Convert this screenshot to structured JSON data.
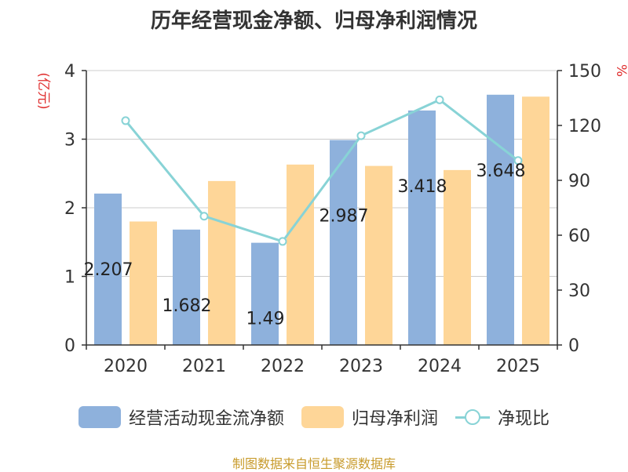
{
  "chart_data": {
    "type": "bar",
    "title": "历年经营现金净额、归母净利润情况",
    "categories": [
      "2020",
      "2021",
      "2022",
      "2023",
      "2024",
      "2025"
    ],
    "series": [
      {
        "name": "经营活动现金流净额",
        "axis": "left",
        "kind": "bar",
        "color": "#8eb1dc",
        "values": [
          2.207,
          1.682,
          1.49,
          2.987,
          3.418,
          3.648
        ]
      },
      {
        "name": "归母净利润",
        "axis": "left",
        "kind": "bar",
        "color": "#fed698",
        "values": [
          1.8,
          2.39,
          2.63,
          2.61,
          2.55,
          3.62
        ]
      },
      {
        "name": "净现比",
        "axis": "right",
        "kind": "line",
        "color": "#88d3d6",
        "values": [
          122.6,
          70.4,
          56.6,
          114.4,
          134.0,
          100.8
        ]
      }
    ],
    "data_labels": [
      "2.207",
      "1.682",
      "1.49",
      "2.987",
      "3.418",
      "3.648"
    ],
    "y_left": {
      "label": "(亿元)",
      "min": 0,
      "max": 4,
      "ticks": [
        "0",
        "1",
        "2",
        "3",
        "4"
      ]
    },
    "y_right": {
      "label": "%",
      "min": 0,
      "max": 150,
      "ticks": [
        "0",
        "30",
        "60",
        "90",
        "120",
        "150"
      ]
    },
    "grid": true,
    "legend_position": "bottom"
  },
  "legend": {
    "cash_flow": "经营活动现金流净额",
    "net_profit": "归母净利润",
    "ratio": "净现比"
  },
  "footer": "制图数据来自恒生聚源数据库",
  "colors": {
    "bar1": "#8eb1dc",
    "bar2": "#fed698",
    "line": "#88d3d6",
    "axis_label": "#e03030",
    "footer": "#c89b2c"
  }
}
